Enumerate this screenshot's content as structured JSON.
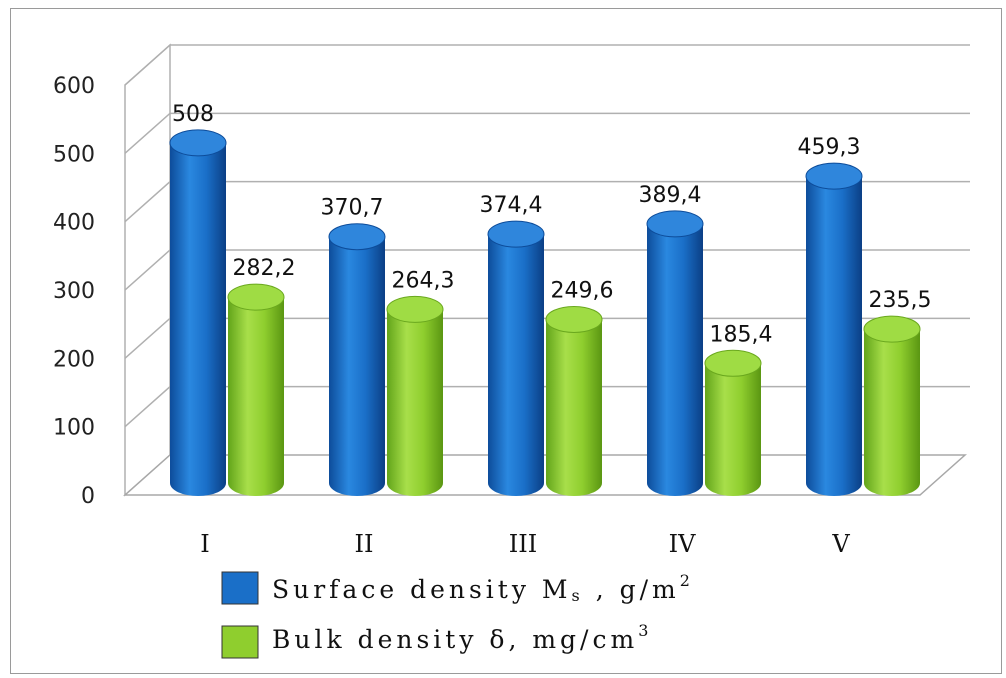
{
  "chart_data": {
    "type": "bar",
    "categories": [
      "I",
      "II",
      "III",
      "IV",
      "V"
    ],
    "series": [
      {
        "name": "Surface density Ms , g/m 2",
        "values": [
          508,
          370.7,
          374.4,
          389.4,
          459.3
        ],
        "labels": [
          "508",
          "370,7",
          "374,4",
          "389,4",
          "459,3"
        ],
        "color": "#1a6fc8"
      },
      {
        "name": "Bulk density δ, mg/cm 3",
        "values": [
          282.2,
          264.3,
          249.6,
          185.4,
          235.5
        ],
        "labels": [
          "282,2",
          "264,3",
          "249,6",
          "185,4",
          "235,5"
        ],
        "color": "#8fce2e"
      }
    ],
    "yticks": [
      "0",
      "100",
      "200",
      "300",
      "400",
      "500",
      "600"
    ],
    "ylim": [
      0,
      600
    ],
    "grid": true,
    "legend_position": "bottom",
    "title": "",
    "xlabel": "",
    "ylabel": ""
  },
  "legend": {
    "surface": {
      "main": "Surface density M",
      "sub": "s",
      "unit": " , g/m",
      "sup": "2"
    },
    "bulk": {
      "main": "Bulk density δ, mg/cm",
      "sup": "3"
    }
  }
}
